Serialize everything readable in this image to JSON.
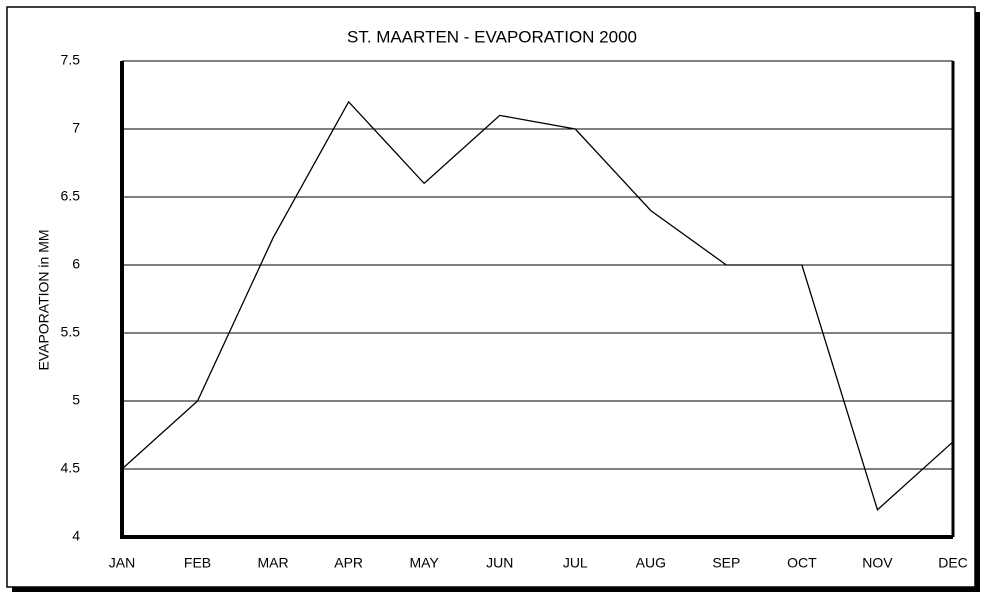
{
  "chart_data": {
    "type": "line",
    "title": "ST. MAARTEN - EVAPORATION 2000",
    "y_label": "EVAPORATION in MM",
    "categories": [
      "JAN",
      "FEB",
      "MAR",
      "APR",
      "MAY",
      "JUN",
      "JUL",
      "AUG",
      "SEP",
      "OCT",
      "NOV",
      "DEC"
    ],
    "values": [
      4.5,
      5.0,
      6.2,
      7.2,
      6.6,
      7.1,
      7.0,
      6.4,
      6.0,
      6.0,
      4.2,
      4.7
    ],
    "color": "#000000",
    "ylim": [
      4,
      7.5
    ],
    "yticks": [
      4,
      4.5,
      5,
      5.5,
      6,
      6.5,
      7,
      7.5
    ],
    "grid": true
  }
}
